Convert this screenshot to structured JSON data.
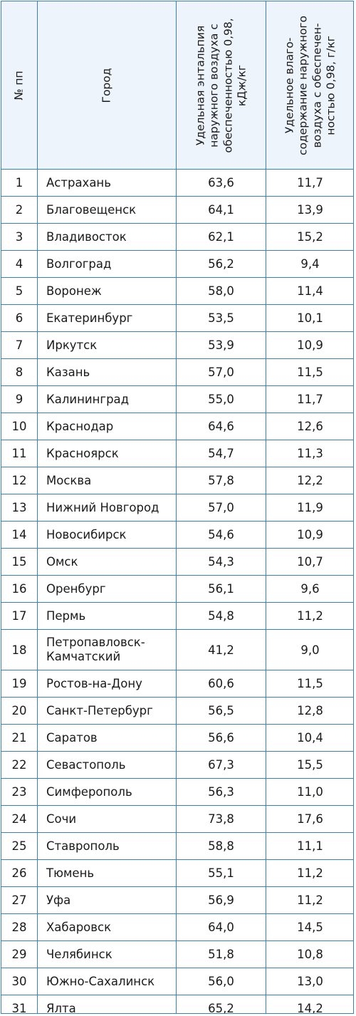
{
  "table": {
    "headers": {
      "num": "№ пп",
      "city": "Город",
      "enthalpy": "Удельная энтальпия наружного воздуха с обеспеченностью 0,98, кДж/кг",
      "moisture": "Удельное влаго-содержание наружного воздуха с обеспечен-ностью 0,98, г/кг"
    },
    "rows": [
      {
        "num": "1",
        "city": "Астрахань",
        "enthalpy": "63,6",
        "moisture": "11,7"
      },
      {
        "num": "2",
        "city": "Благовещенск",
        "enthalpy": "64,1",
        "moisture": "13,9"
      },
      {
        "num": "3",
        "city": "Владивосток",
        "enthalpy": "62,1",
        "moisture": "15,2"
      },
      {
        "num": "4",
        "city": "Волгоград",
        "enthalpy": "56,2",
        "moisture": "9,4"
      },
      {
        "num": "5",
        "city": "Воронеж",
        "enthalpy": "58,0",
        "moisture": "11,4"
      },
      {
        "num": "6",
        "city": "Екатеринбург",
        "enthalpy": "53,5",
        "moisture": "10,1"
      },
      {
        "num": "7",
        "city": "Иркутск",
        "enthalpy": "53,9",
        "moisture": "10,9"
      },
      {
        "num": "8",
        "city": "Казань",
        "enthalpy": "57,0",
        "moisture": "11,5"
      },
      {
        "num": "9",
        "city": "Калининград",
        "enthalpy": "55,0",
        "moisture": "11,7"
      },
      {
        "num": "10",
        "city": "Краснодар",
        "enthalpy": "64,6",
        "moisture": "12,6"
      },
      {
        "num": "11",
        "city": "Красноярск",
        "enthalpy": "54,7",
        "moisture": "11,3"
      },
      {
        "num": "12",
        "city": "Москва",
        "enthalpy": "57,8",
        "moisture": "12,2"
      },
      {
        "num": "13",
        "city": "Нижний Новгород",
        "enthalpy": "57,0",
        "moisture": "11,9"
      },
      {
        "num": "14",
        "city": "Новосибирск",
        "enthalpy": "54,6",
        "moisture": "10,9"
      },
      {
        "num": "15",
        "city": "Омск",
        "enthalpy": "54,3",
        "moisture": "10,7"
      },
      {
        "num": "16",
        "city": "Оренбург",
        "enthalpy": "56,1",
        "moisture": "9,6"
      },
      {
        "num": "17",
        "city": "Пермь",
        "enthalpy": "54,8",
        "moisture": "11,2"
      },
      {
        "num": "18",
        "city": "Петропавловск-\nКамчатский",
        "enthalpy": "41,2",
        "moisture": "9,0"
      },
      {
        "num": "19",
        "city": "Ростов-на-Дону",
        "enthalpy": "60,6",
        "moisture": "11,5"
      },
      {
        "num": "20",
        "city": "Санкт-Петербург",
        "enthalpy": "56,5",
        "moisture": "12,8"
      },
      {
        "num": "21",
        "city": "Саратов",
        "enthalpy": "56,6",
        "moisture": "10,4"
      },
      {
        "num": "22",
        "city": "Севастополь",
        "enthalpy": "67,3",
        "moisture": "15,5"
      },
      {
        "num": "23",
        "city": "Симферополь",
        "enthalpy": "56,3",
        "moisture": "11,0"
      },
      {
        "num": "24",
        "city": "Сочи",
        "enthalpy": "73,8",
        "moisture": "17,6"
      },
      {
        "num": "25",
        "city": "Ставрополь",
        "enthalpy": "58,8",
        "moisture": "11,1"
      },
      {
        "num": "26",
        "city": "Тюмень",
        "enthalpy": "55,1",
        "moisture": "11,2"
      },
      {
        "num": "27",
        "city": "Уфа",
        "enthalpy": "56,9",
        "moisture": "11,2"
      },
      {
        "num": "28",
        "city": "Хабаровск",
        "enthalpy": "64,0",
        "moisture": "14,5"
      },
      {
        "num": "29",
        "city": "Челябинск",
        "enthalpy": "51,8",
        "moisture": "10,8"
      },
      {
        "num": "30",
        "city": "Южно-Сахалинск",
        "enthalpy": "56,0",
        "moisture": "13,0"
      },
      {
        "num": "31",
        "city": "Ялта",
        "enthalpy": "65,2",
        "moisture": "14,2"
      }
    ]
  }
}
